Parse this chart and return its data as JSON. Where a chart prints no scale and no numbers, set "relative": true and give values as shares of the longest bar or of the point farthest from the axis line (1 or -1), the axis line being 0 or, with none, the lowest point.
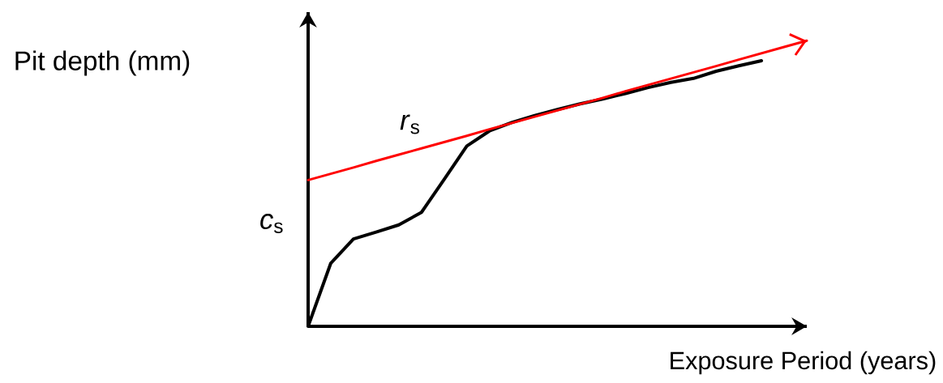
{
  "chart_data": {
    "type": "line",
    "relative": true,
    "ylabel": "Pit depth (mm)",
    "xlabel": "Exposure Period  (years)",
    "annotations": [
      "*c*$_{s}$",
      "*r*$_{s}$"
    ],
    "categories": [
      null,
      null,
      null,
      null,
      null,
      null,
      null,
      null,
      null,
      null,
      null,
      null,
      null,
      null,
      null,
      null,
      null,
      null,
      null,
      null,
      null,
      null,
      null
    ],
    "series": [
      {
        "color": "#000000",
        "values": [
          0,
          0.221,
          0.306,
          0.33,
          0.355,
          0.399,
          0.514,
          0.631,
          0.684,
          0.714,
          0.738,
          0.759,
          0.779,
          0.796,
          0.815,
          0.836,
          0.854,
          0.868,
          0.893,
          0.912,
          0.93,
          null,
          null
        ]
      },
      {
        "color": "#ff0000",
        "values": [
          0.512,
          0.534,
          0.556,
          0.579,
          0.601,
          0.623,
          0.645,
          0.667,
          0.69,
          0.712,
          0.734,
          0.756,
          0.778,
          0.8,
          0.823,
          0.845,
          0.867,
          0.889,
          0.911,
          0.934,
          0.956,
          0.978,
          1.0
        ]
      }
    ]
  }
}
